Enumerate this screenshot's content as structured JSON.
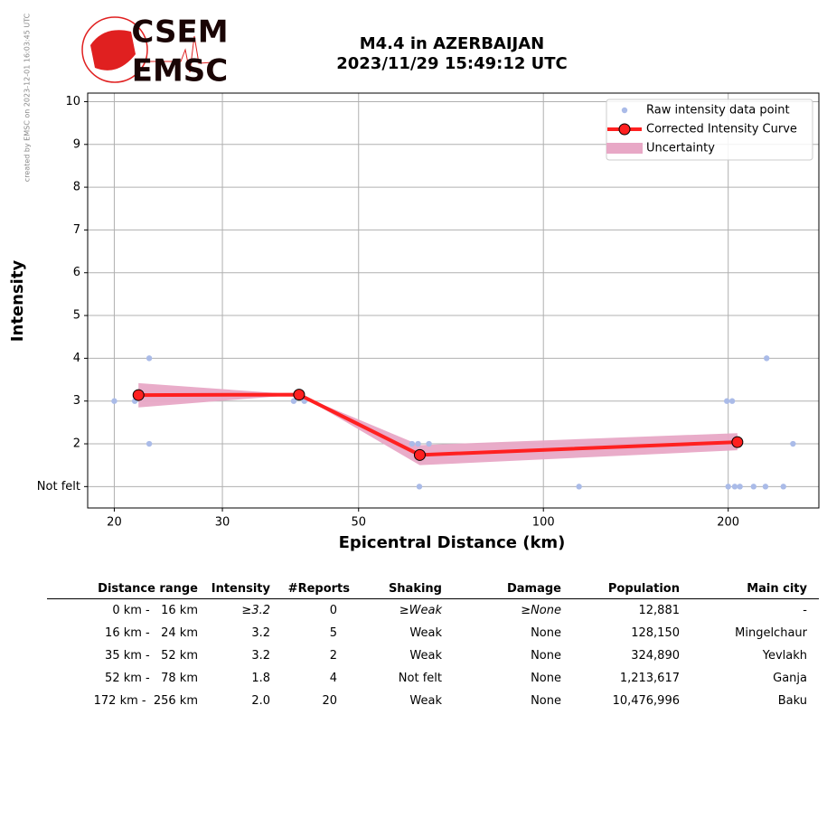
{
  "chart_data": {
    "type": "line",
    "title": "M4.4 in AZERBAIJAN",
    "subtitle": "2023/11/29 15:49:12 UTC",
    "credit": "created by EMSC on 2023-12-01 16:03:45 UTC",
    "logo": [
      "CSEM",
      "EMSC"
    ],
    "x_label": "Epicentral Distance (km)",
    "y_label": "Intensity",
    "xscale": "log",
    "xlim": [
      18.1,
      281
    ],
    "ylim": [
      0.5,
      10.2
    ],
    "xticks": [
      20,
      30,
      50,
      100,
      200
    ],
    "yticks": [
      {
        "value": 1,
        "label": "Not felt"
      },
      2,
      3,
      4,
      5,
      6,
      7,
      8,
      9,
      10
    ],
    "grid": true,
    "legend": "upper right",
    "uncertainty": {
      "name": "Uncertainty",
      "color": "#e8a8c6",
      "x": [
        21.9,
        40.0,
        62.9,
        207
      ],
      "lower": [
        2.85,
        3.15,
        1.5,
        1.85
      ],
      "upper": [
        3.42,
        3.15,
        1.97,
        2.25
      ]
    },
    "series": [
      {
        "name": "Raw intensity data point",
        "type": "scatter",
        "color": "#aabbe8",
        "x": [
          20,
          21.6,
          22.8,
          22.8,
          39.2,
          40.8,
          61.1,
          62.5,
          65.1,
          62.8,
          114.3,
          199,
          203,
          200,
          205,
          209,
          220,
          230,
          231,
          246,
          255,
          205
        ],
        "values": [
          3,
          3,
          4,
          2,
          3,
          3,
          2,
          2,
          2,
          1,
          1,
          3,
          3,
          1,
          1,
          1,
          1,
          1,
          4,
          1,
          2,
          2
        ]
      },
      {
        "name": "Corrected Intensity Curve",
        "type": "line",
        "color": "#ff2020",
        "x": [
          21.9,
          40.0,
          62.9,
          207
        ],
        "values": [
          3.14,
          3.15,
          1.74,
          2.04
        ]
      }
    ]
  },
  "table": {
    "header": [
      "Distance range",
      "Intensity",
      "#Reports",
      "Shaking",
      "Damage",
      "Population",
      "Main city"
    ],
    "rows": [
      [
        "0 km -   16 km",
        "≥3.2",
        "0",
        "≥Weak",
        "≥None",
        "12,881",
        "-"
      ],
      [
        "16 km -   24 km",
        "3.2",
        "5",
        "Weak",
        "None",
        "128,150",
        "Mingelchaur"
      ],
      [
        "35 km -   52 km",
        "3.2",
        "2",
        "Weak",
        "None",
        "324,890",
        "Yevlakh"
      ],
      [
        "52 km -   78 km",
        "1.8",
        "4",
        "Not felt",
        "None",
        "1,213,617",
        "Ganja"
      ],
      [
        "172 km -  256 km",
        "2.0",
        "20",
        "Weak",
        "None",
        "10,476,996",
        "Baku"
      ]
    ]
  }
}
